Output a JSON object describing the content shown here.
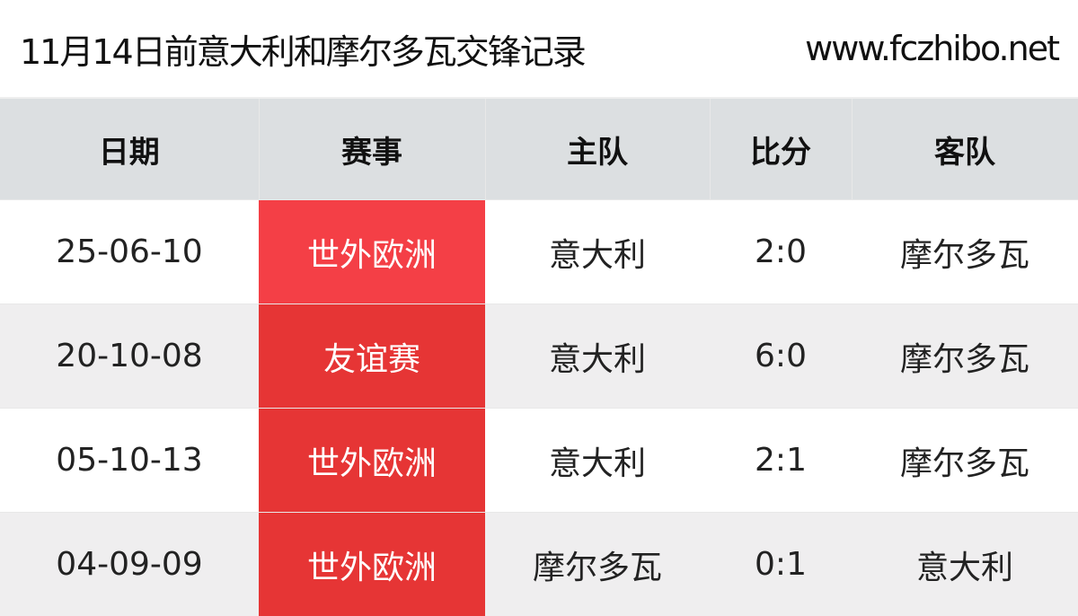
{
  "title": "11月14日前意大利和摩尔多瓦交锋记录",
  "site": "www.fczhibo.net",
  "headers": [
    "日期",
    "赛事",
    "主队",
    "比分",
    "客队"
  ],
  "rows": [
    {
      "date": "25-06-10",
      "comp": "世外欧洲",
      "home": "意大利",
      "score": "2:0",
      "away": "摩尔多瓦",
      "color": "#f43f46"
    },
    {
      "date": "20-10-08",
      "comp": "友谊赛",
      "home": "意大利",
      "score": "6:0",
      "away": "摩尔多瓦",
      "color": "#e63535"
    },
    {
      "date": "05-10-13",
      "comp": "世外欧洲",
      "home": "意大利",
      "score": "2:1",
      "away": "摩尔多瓦",
      "color": "#e63535"
    },
    {
      "date": "04-09-09",
      "comp": "世外欧洲",
      "home": "摩尔多瓦",
      "score": "0:1",
      "away": "意大利",
      "color": "#e63535"
    }
  ]
}
